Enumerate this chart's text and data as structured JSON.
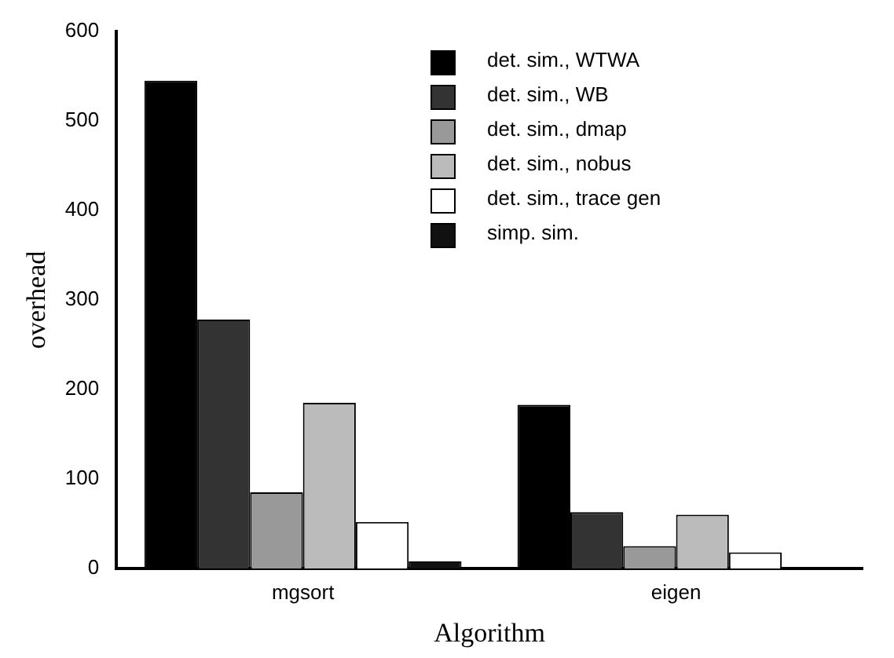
{
  "chart_data": {
    "type": "bar",
    "xlabel": "Algorithm",
    "ylabel": "overhead",
    "categories": [
      "mgsort",
      "eigen"
    ],
    "series": [
      {
        "name": "det. sim., WTWA",
        "color": "#000000",
        "values": [
          545,
          183
        ]
      },
      {
        "name": "det. sim., WB",
        "color": "#333333",
        "values": [
          278,
          63
        ]
      },
      {
        "name": "det. sim., dmap",
        "color": "#999999",
        "values": [
          85,
          25
        ]
      },
      {
        "name": "det. sim., nobus",
        "color": "#bbbbbb",
        "values": [
          185,
          60
        ]
      },
      {
        "name": "det. sim., trace gen",
        "color": "#ffffff",
        "values": [
          52,
          18
        ]
      },
      {
        "name": "simp. sim.",
        "color": "#111111",
        "values": [
          8,
          null
        ]
      }
    ],
    "ylim": [
      0,
      600
    ],
    "yticks": [
      0,
      100,
      200,
      300,
      400,
      500,
      600
    ],
    "grid": false,
    "legend": "top right"
  }
}
